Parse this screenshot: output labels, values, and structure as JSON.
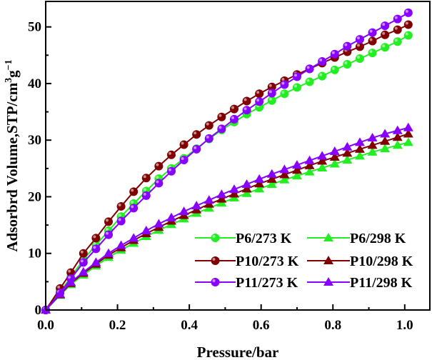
{
  "chart_data": {
    "type": "line",
    "title": "",
    "xlabel": "Pressure/bar",
    "ylabel": "Adsorbrd Volume,STP/cm",
    "ylabel_sup1": "3",
    "ylabel_mid": "g",
    "ylabel_sup2": "−1",
    "xlim": [
      0,
      1.07
    ],
    "ylim": [
      0,
      54.5
    ],
    "xticks": [
      "0.0",
      "0.2",
      "0.4",
      "0.6",
      "0.8",
      "1.0"
    ],
    "yticks": [
      "0",
      "10",
      "20",
      "30",
      "40",
      "50"
    ],
    "grid": false,
    "legend_placement": "bottom-right",
    "x": [
      0,
      0.04,
      0.07,
      0.105,
      0.14,
      0.175,
      0.21,
      0.245,
      0.28,
      0.315,
      0.35,
      0.385,
      0.42,
      0.455,
      0.49,
      0.525,
      0.56,
      0.595,
      0.63,
      0.665,
      0.7,
      0.735,
      0.77,
      0.805,
      0.84,
      0.875,
      0.91,
      0.945,
      0.98,
      1.01
    ],
    "series": [
      {
        "name": "P6/273 K",
        "color": "#22ee22",
        "marker": "circle",
        "values": [
          0,
          3.2,
          5.8,
          8.9,
          11.5,
          14,
          16.5,
          18.8,
          21,
          23.2,
          25,
          26.8,
          28.5,
          30.2,
          31.8,
          33.2,
          34.6,
          35.8,
          37,
          38.2,
          39.3,
          40.3,
          41.3,
          42.4,
          43.4,
          44.4,
          45.4,
          46.4,
          47.4,
          48.5
        ]
      },
      {
        "name": "P6/298 K",
        "color": "#22ee22",
        "marker": "triangle",
        "values": [
          0,
          2.6,
          4.5,
          6.2,
          7.8,
          9.3,
          10.6,
          11.8,
          13,
          14.1,
          15.1,
          16.1,
          17.1,
          18,
          18.9,
          19.8,
          20.6,
          21.4,
          22.2,
          23,
          23.7,
          24.4,
          25.1,
          25.8,
          26.5,
          27.2,
          27.9,
          28.5,
          29.1,
          29.6
        ]
      },
      {
        "name": "P10/273 K",
        "color": "#800000",
        "marker": "circle",
        "values": [
          0,
          3.8,
          6.6,
          10,
          12.7,
          15.6,
          18.3,
          20.9,
          23.3,
          25.4,
          27.4,
          29.2,
          31,
          32.6,
          34.1,
          35.5,
          36.9,
          38.2,
          39.4,
          40.5,
          41.6,
          42.6,
          43.6,
          44.6,
          45.6,
          46.5,
          47.5,
          48.6,
          49.5,
          50.4
        ]
      },
      {
        "name": "P10/298 K",
        "color": "#800000",
        "marker": "triangle",
        "values": [
          0,
          2.7,
          4.7,
          6.5,
          8.1,
          9.7,
          11,
          12.3,
          13.5,
          14.6,
          15.7,
          16.7,
          17.7,
          18.7,
          19.6,
          20.5,
          21.4,
          22.3,
          23.1,
          23.9,
          24.7,
          25.5,
          26.3,
          27,
          27.7,
          28.4,
          29.1,
          29.8,
          30.5,
          31.1
        ]
      },
      {
        "name": "P11/273 K",
        "color": "#8800ff",
        "marker": "circle",
        "values": [
          0,
          3,
          5.5,
          8.4,
          10.8,
          13.3,
          15.7,
          18,
          20.2,
          22.4,
          24.5,
          26.5,
          28.4,
          30.3,
          32,
          33.7,
          35.3,
          36.8,
          38.3,
          39.8,
          41.2,
          42.6,
          43.9,
          45.2,
          46.6,
          47.8,
          49,
          50.2,
          51.4,
          52.5
        ]
      },
      {
        "name": "P11/298 K",
        "color": "#8800ff",
        "marker": "triangle",
        "values": [
          0,
          2.8,
          4.9,
          6.7,
          8.4,
          10,
          11.4,
          12.7,
          14,
          15.2,
          16.3,
          17.4,
          18.4,
          19.4,
          20.4,
          21.3,
          22.2,
          23.1,
          24,
          24.8,
          25.6,
          26.4,
          27.2,
          28,
          28.8,
          29.6,
          30.4,
          31.1,
          31.7,
          32.2
        ]
      }
    ]
  }
}
